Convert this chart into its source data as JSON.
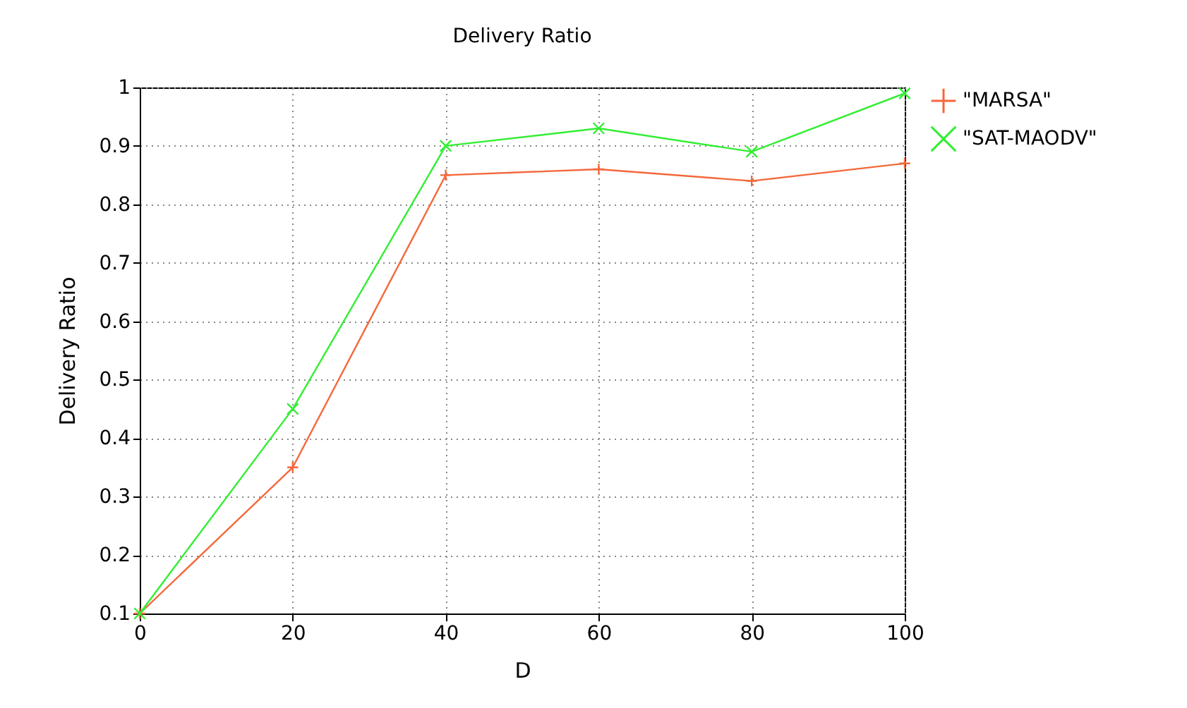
{
  "chart_data": {
    "type": "line",
    "title": "Delivery Ratio",
    "xlabel": "D",
    "ylabel": "Delivery Ratio",
    "x": [
      0,
      20,
      40,
      60,
      80,
      100
    ],
    "series": [
      {
        "name": "\"MARSA\"",
        "color": "#f4683a",
        "values": [
          0.1,
          0.35,
          0.85,
          0.86,
          0.84,
          0.87
        ]
      },
      {
        "name": "\"SAT-MAODV\"",
        "color": "#33ee33",
        "values": [
          0.1,
          0.45,
          0.9,
          0.93,
          0.89,
          0.99
        ]
      }
    ],
    "xlim": [
      0,
      100
    ],
    "xticks": [
      0,
      20,
      40,
      60,
      80,
      100
    ],
    "ylim": [
      0.1,
      1
    ],
    "yticks": [
      0.1,
      0.2,
      0.3,
      0.4,
      0.5,
      0.6,
      0.7,
      0.8,
      0.9,
      1
    ],
    "grid": true,
    "legend": "top right",
    "marker": "cross",
    "line_style": "solid"
  }
}
